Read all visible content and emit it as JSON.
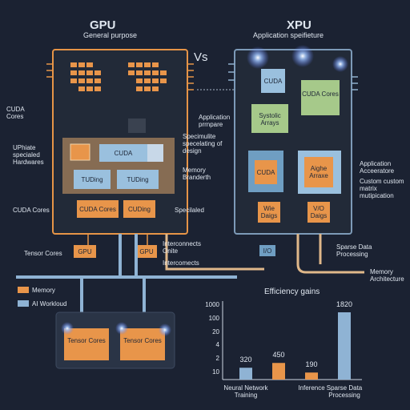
{
  "gpu": {
    "title": "GPU",
    "subtitle": "General purpose",
    "labels": [
      "CUDA Cores",
      "UPhiate specialed Hardwares",
      "CUDA Cores",
      "Tensor Cores"
    ],
    "blocks": [
      "CUDA",
      "TUDing",
      "TUDing",
      "CUDA Cores",
      "CUDing",
      "GPU",
      "GPU"
    ],
    "notes": [
      "Specimulite specelating of design",
      "Memory Branderth",
      "Specilaled",
      "Interconnects Onite",
      "Intercomects"
    ]
  },
  "vs": "Vs",
  "xpu": {
    "title": "XPU",
    "subtitle": "Application speifieture",
    "blocks": [
      "CUDA",
      "CUDA Cores",
      "Systolic Arrays",
      "CUDA",
      "Aighe Arraxe",
      "Wie Daigs",
      "V/O Daigs",
      "I/O"
    ],
    "notes": [
      "Application prrnpare",
      "Application Acceeratore",
      "Custom custom matrix mutipication",
      "Sparse Data Processing",
      "Memory Architecture"
    ]
  },
  "legend": [
    "Memory",
    "AI Workloud"
  ],
  "bottom_blocks": [
    "Tensor Cores",
    "Tensor Cores"
  ],
  "chart": {
    "type": "bar",
    "title": "Efficiency gains",
    "y_axis_labels": [
      "1000",
      "100",
      "20",
      "4",
      "2",
      "10"
    ],
    "categories": [
      "Neural Network Training",
      null,
      "Inference",
      "Sparse Data Processing"
    ],
    "values": [
      320,
      450,
      190,
      1820
    ],
    "colors": [
      "#8fb3d4",
      "#e8954a",
      "#e8954a",
      "#8fb3d4"
    ]
  }
}
